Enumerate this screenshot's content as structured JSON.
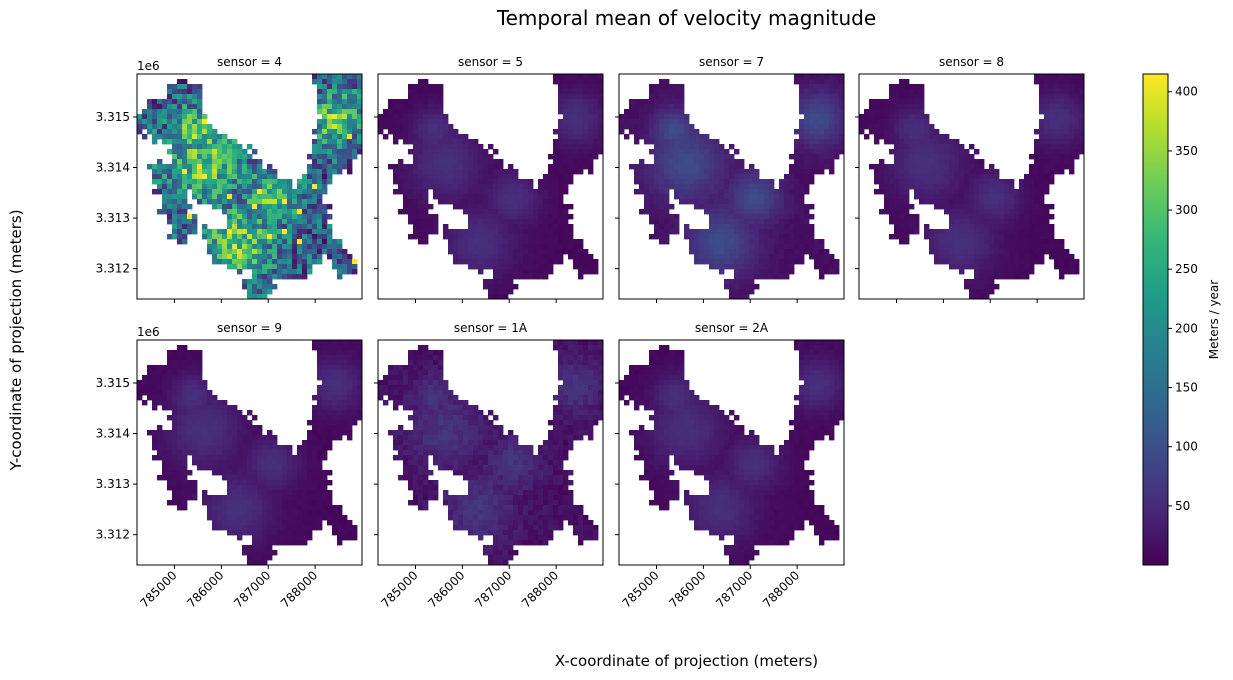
{
  "chart_data": {
    "type": "heatmap",
    "title": "Temporal mean of velocity magnitude",
    "xlabel": "X-coordinate of projection (meters)",
    "ylabel": "Y-coordinate of projection (meters)",
    "facet_variable": "sensor",
    "panels": [
      {
        "label": "sensor = 4",
        "sensor": "4",
        "mean_velocity_range": [
          10,
          415
        ]
      },
      {
        "label": "sensor = 5",
        "sensor": "5",
        "mean_velocity_range": [
          5,
          60
        ]
      },
      {
        "label": "sensor = 7",
        "sensor": "7",
        "mean_velocity_range": [
          10,
          100
        ]
      },
      {
        "label": "sensor = 8",
        "sensor": "8",
        "mean_velocity_range": [
          5,
          60
        ]
      },
      {
        "label": "sensor = 9",
        "sensor": "9",
        "mean_velocity_range": [
          5,
          60
        ]
      },
      {
        "label": "sensor = 1A",
        "sensor": "1A",
        "mean_velocity_range": [
          5,
          75
        ]
      },
      {
        "label": "sensor = 2A",
        "sensor": "2A",
        "mean_velocity_range": [
          5,
          60
        ]
      }
    ],
    "x_ticks": [
      785000,
      786000,
      787000,
      788000
    ],
    "x_tick_labels": [
      "785000",
      "786000",
      "787000",
      "788000"
    ],
    "xlim": [
      784200,
      789000
    ],
    "y_ticks": [
      3312000,
      3313000,
      3314000,
      3315000
    ],
    "y_tick_labels": [
      "3.312",
      "3.313",
      "3.314",
      "3.315"
    ],
    "y_offset_label": "1e6",
    "ylim": [
      3311400,
      3315850
    ],
    "colorbar": {
      "label": "Meters / year",
      "colormap": "viridis",
      "range": [
        0,
        415
      ],
      "ticks": [
        50,
        100,
        150,
        200,
        250,
        300,
        350,
        400
      ],
      "tick_labels": [
        "50",
        "100",
        "150",
        "200",
        "250",
        "300",
        "350",
        "400"
      ]
    },
    "grid": false,
    "legend": "colorbar-right"
  }
}
